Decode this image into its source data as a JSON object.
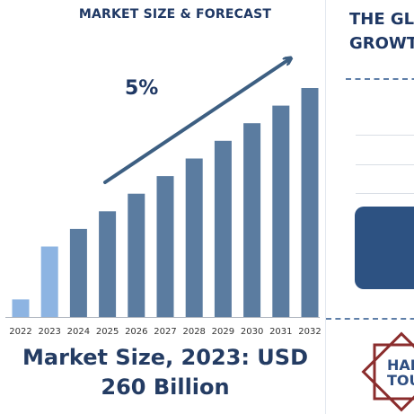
{
  "left": {
    "title": "MARKET SIZE & FORECAST",
    "growth_label": "5%",
    "market_size_line1": "Market Size, 2023: USD",
    "market_size_line2": "260 Billion"
  },
  "right": {
    "heading_line1": "THE GL",
    "heading_line2": "GROWT",
    "badge_line1": "HALA",
    "badge_line2": "TOUR"
  },
  "colors": {
    "bar_light": "#8db4e2",
    "bar_dark": "#5b7ca0",
    "arrow": "#3d5f82",
    "axis": "#b0b7c0",
    "title": "#1f3864",
    "badge_accent": "#8b2d2d"
  },
  "chart_data": {
    "type": "bar",
    "categories": [
      "2022",
      "2023",
      "2024",
      "2025",
      "2026",
      "2027",
      "2028",
      "2029",
      "2030",
      "2031",
      "2032"
    ],
    "values": [
      10,
      40,
      50,
      60,
      70,
      80,
      90,
      100,
      110,
      120,
      130
    ],
    "highlight": [
      "light",
      "light",
      "dark",
      "dark",
      "dark",
      "dark",
      "dark",
      "dark",
      "dark",
      "dark",
      "dark"
    ],
    "title": "MARKET SIZE & FORECAST",
    "annotation": "5%",
    "trend_arrow": true,
    "xlabel": "",
    "ylabel": "",
    "ylim": [
      0,
      130
    ],
    "grid": false
  }
}
